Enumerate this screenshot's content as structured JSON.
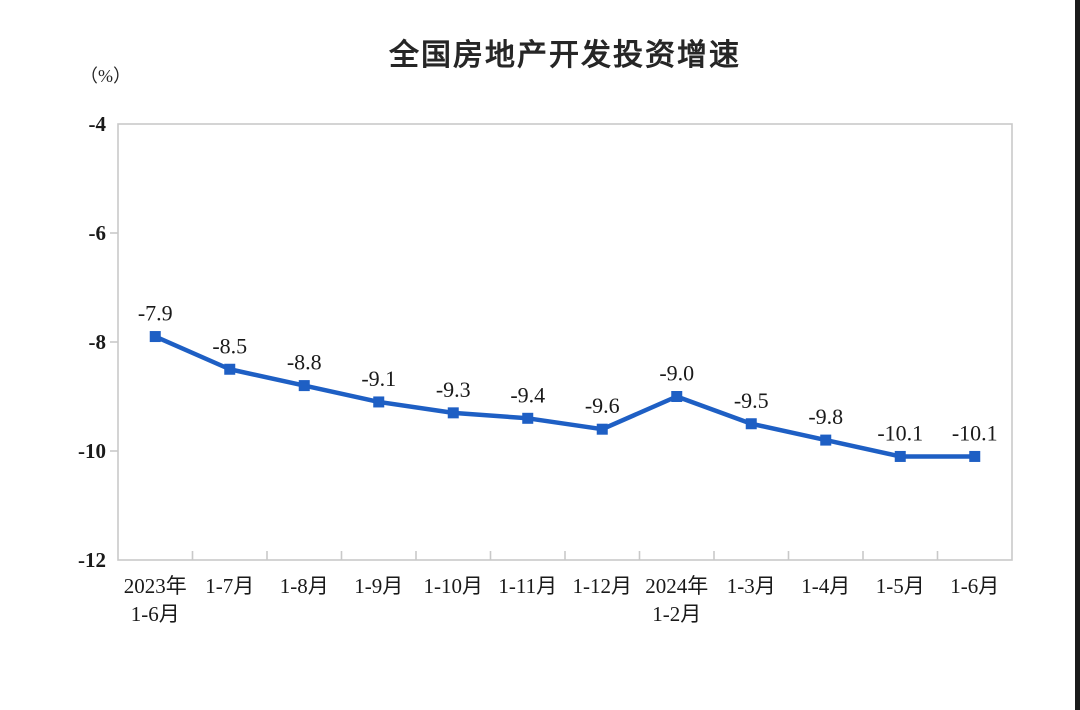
{
  "chart_data": {
    "type": "line",
    "title": "全国房地产开发投资增速",
    "ylabel_unit": "（%）",
    "categories": [
      "2023年\n1-6月",
      "1-7月",
      "1-8月",
      "1-9月",
      "1-10月",
      "1-11月",
      "1-12月",
      "2024年\n1-2月",
      "1-3月",
      "1-4月",
      "1-5月",
      "1-6月"
    ],
    "values": [
      -7.9,
      -8.5,
      -8.8,
      -9.1,
      -9.3,
      -9.4,
      -9.6,
      -9.0,
      -9.5,
      -9.8,
      -10.1,
      -10.1
    ],
    "data_labels": [
      "-7.9",
      "-8.5",
      "-8.8",
      "-9.1",
      "-9.3",
      "-9.4",
      "-9.6",
      "-9.0",
      "-9.5",
      "-9.8",
      "-10.1",
      "-10.1"
    ],
    "yticks": [
      -4,
      -6,
      -8,
      -10,
      -12
    ],
    "ylim": [
      -12,
      -4
    ],
    "grid": false,
    "legend": "none",
    "marker_shape": "square",
    "colors": {
      "line": "#1e5fc4",
      "marker": "#1e5fc4",
      "axis": "#c9c9c9",
      "text": "#1a1a1a"
    }
  }
}
